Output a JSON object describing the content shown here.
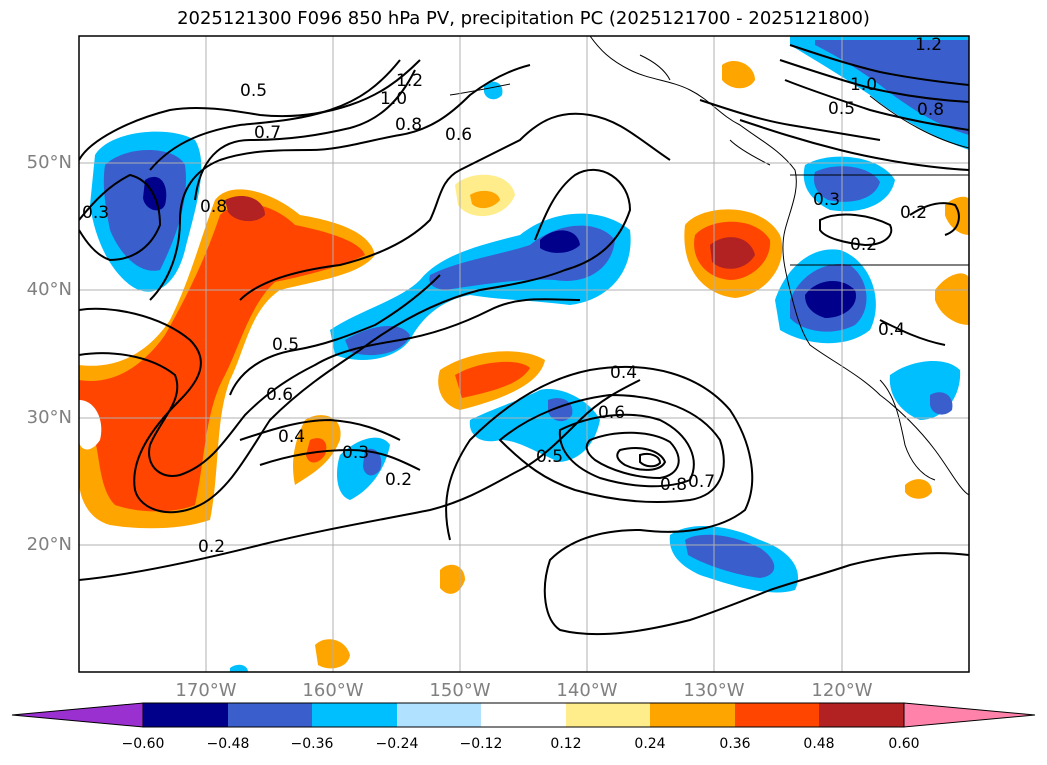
{
  "title": "2025121300 F096 850 hPa PV, precipitation PC (2025121700 - 2025121800)",
  "lat_ticks": [
    "50°N",
    "40°N",
    "30°N",
    "20°N"
  ],
  "lon_ticks": [
    "170°W",
    "160°W",
    "150°W",
    "140°W",
    "130°W",
    "120°W"
  ],
  "colorbar": {
    "ticks": [
      "−0.60",
      "−0.48",
      "−0.36",
      "−0.24",
      "−0.12",
      "0.12",
      "0.24",
      "0.36",
      "0.48",
      "0.60"
    ],
    "colors": [
      "#9b30d0",
      "#00008b",
      "#3a5fcd",
      "#00bfff",
      "#b0e2ff",
      "#ffffff",
      "#ffec8b",
      "#ffa500",
      "#ff4500",
      "#b22222",
      "#ff82ab"
    ]
  },
  "contour_labels": [
    "0.5",
    "0.7",
    "0.8",
    "0.3",
    "1.0",
    "1.2",
    "0.6",
    "0.8",
    "1.2",
    "1.0",
    "0.5",
    "0.8",
    "0.3",
    "0.2",
    "0.2",
    "0.4",
    "0.5",
    "0.6",
    "0.4",
    "0.3",
    "0.2",
    "0.2",
    "0.4",
    "0.6",
    "0.5",
    "0.8",
    "0.7"
  ]
}
